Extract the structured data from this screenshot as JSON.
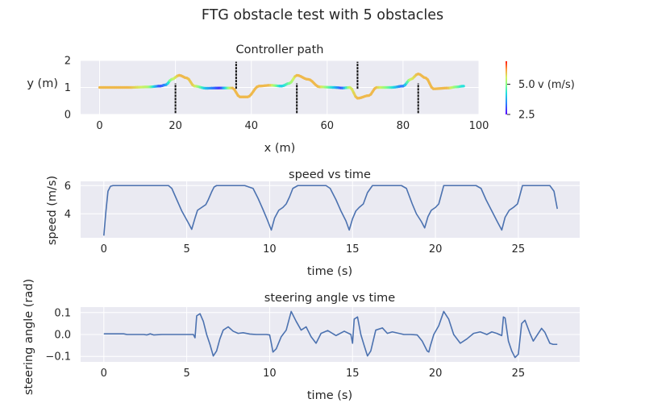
{
  "figure": {
    "title": "FTG obstacle test with 5 obstacles",
    "background": "#ffffff",
    "axes_face": "#eaeaf2",
    "grid_color": "#ffffff",
    "text_color": "#262626"
  },
  "chart_data": [
    {
      "type": "scatter",
      "title": "Controller path",
      "xlabel": "x (m)",
      "ylabel": "y (m)",
      "xlim": [
        -5,
        100
      ],
      "ylim": [
        0,
        2
      ],
      "xticks": [
        "0",
        "20",
        "40",
        "60",
        "80",
        "100"
      ],
      "yticks": [
        "0",
        "1",
        "2"
      ],
      "xtick_values": [
        0,
        20,
        40,
        60,
        80,
        100
      ],
      "ytick_values": [
        0,
        1,
        2
      ],
      "grid": true,
      "colormap": "rainbow",
      "colorbar": {
        "label": "v (m/s)",
        "range": [
          2.5,
          6.0
        ],
        "ticks": [
          "2.5",
          "5.0"
        ],
        "tick_values": [
          2.5,
          5.0
        ]
      },
      "path": {
        "x_start": 0,
        "x_end": 96,
        "points": [
          {
            "x": 0,
            "y": 1.0,
            "v": 6.0
          },
          {
            "x": 8,
            "y": 1.0,
            "v": 6.0
          },
          {
            "x": 13,
            "y": 1.02,
            "v": 5.3
          },
          {
            "x": 16,
            "y": 1.05,
            "v": 3.0
          },
          {
            "x": 17.5,
            "y": 1.1,
            "v": 3.5
          },
          {
            "x": 19,
            "y": 1.3,
            "v": 5.2
          },
          {
            "x": 21,
            "y": 1.45,
            "v": 6.0
          },
          {
            "x": 23,
            "y": 1.35,
            "v": 6.0
          },
          {
            "x": 25,
            "y": 1.05,
            "v": 5.8
          },
          {
            "x": 28,
            "y": 0.97,
            "v": 4.0
          },
          {
            "x": 32,
            "y": 0.98,
            "v": 2.8
          },
          {
            "x": 35,
            "y": 0.98,
            "v": 6.0
          },
          {
            "x": 37,
            "y": 0.65,
            "v": 6.0
          },
          {
            "x": 39,
            "y": 0.65,
            "v": 6.0
          },
          {
            "x": 42,
            "y": 1.05,
            "v": 6.0
          },
          {
            "x": 45,
            "y": 1.08,
            "v": 6.0
          },
          {
            "x": 48,
            "y": 1.05,
            "v": 4.0
          },
          {
            "x": 50,
            "y": 1.15,
            "v": 4.8
          },
          {
            "x": 52,
            "y": 1.45,
            "v": 6.0
          },
          {
            "x": 55,
            "y": 1.3,
            "v": 6.0
          },
          {
            "x": 58,
            "y": 1.02,
            "v": 6.0
          },
          {
            "x": 62,
            "y": 1.0,
            "v": 4.0
          },
          {
            "x": 64,
            "y": 0.98,
            "v": 3.0
          },
          {
            "x": 66,
            "y": 1.0,
            "v": 5.5
          },
          {
            "x": 68,
            "y": 0.6,
            "v": 6.0
          },
          {
            "x": 71,
            "y": 0.7,
            "v": 6.0
          },
          {
            "x": 73,
            "y": 1.0,
            "v": 6.0
          },
          {
            "x": 77,
            "y": 1.0,
            "v": 4.5
          },
          {
            "x": 80,
            "y": 1.05,
            "v": 3.2
          },
          {
            "x": 82,
            "y": 1.3,
            "v": 5.5
          },
          {
            "x": 84,
            "y": 1.5,
            "v": 6.0
          },
          {
            "x": 86,
            "y": 1.35,
            "v": 6.0
          },
          {
            "x": 88,
            "y": 0.95,
            "v": 6.0
          },
          {
            "x": 92,
            "y": 0.98,
            "v": 6.0
          },
          {
            "x": 94,
            "y": 1.02,
            "v": 5.0
          },
          {
            "x": 96,
            "y": 1.05,
            "v": 4.2
          }
        ]
      },
      "obstacles": [
        {
          "x": 20,
          "y0": 0.05,
          "y1": 1.15
        },
        {
          "x": 36,
          "y0": 0.95,
          "y1": 1.95
        },
        {
          "x": 52,
          "y0": 0.05,
          "y1": 1.15
        },
        {
          "x": 68,
          "y0": 0.95,
          "y1": 1.95
        },
        {
          "x": 84,
          "y0": 0.05,
          "y1": 1.15
        }
      ]
    },
    {
      "type": "line",
      "title": "speed vs time",
      "xlabel": "time (s)",
      "ylabel": "speed (m/s)",
      "xlim": [
        -1.4,
        28.7
      ],
      "ylim": [
        2.3,
        6.3
      ],
      "xticks": [
        "0",
        "5",
        "10",
        "15",
        "20",
        "25"
      ],
      "yticks": [
        "4",
        "6"
      ],
      "xtick_values": [
        0,
        5,
        10,
        15,
        20,
        25
      ],
      "ytick_values": [
        4,
        6
      ],
      "grid": true,
      "color": "#4c72b0",
      "x": [
        0,
        0.12,
        0.25,
        0.4,
        0.55,
        0.65,
        1,
        3.9,
        4.1,
        4.4,
        4.7,
        5.1,
        5.3,
        5.5,
        5.65,
        5.9,
        6.15,
        6.3,
        6.5,
        6.65,
        6.8,
        6.95,
        7.2,
        8.5,
        9.0,
        9.3,
        9.6,
        9.85,
        10.1,
        10.3,
        10.55,
        10.8,
        11.0,
        11.2,
        11.4,
        11.7,
        13.4,
        13.65,
        14.0,
        14.3,
        14.6,
        14.8,
        15.0,
        15.2,
        15.4,
        15.65,
        15.9,
        16.2,
        17.95,
        18.25,
        18.6,
        18.85,
        19.15,
        19.35,
        19.55,
        19.75,
        20.0,
        20.2,
        20.5,
        22.45,
        22.75,
        23.05,
        23.4,
        23.75,
        24.0,
        24.2,
        24.45,
        24.7,
        24.95,
        25.25,
        26.9,
        27.15,
        27.35
      ],
      "y": [
        2.45,
        4.1,
        5.6,
        5.95,
        6.0,
        6.0,
        6.0,
        6.0,
        5.8,
        5.0,
        4.2,
        3.35,
        2.9,
        3.7,
        4.25,
        4.45,
        4.65,
        5.0,
        5.55,
        5.9,
        6.0,
        6.0,
        6.0,
        6.0,
        5.8,
        5.1,
        4.3,
        3.6,
        2.85,
        3.7,
        4.25,
        4.45,
        4.7,
        5.2,
        5.8,
        6.0,
        6.0,
        5.8,
        5.0,
        4.2,
        3.5,
        2.85,
        3.65,
        4.2,
        4.45,
        4.7,
        5.5,
        6.0,
        6.0,
        5.8,
        4.7,
        4.0,
        3.45,
        3.0,
        3.8,
        4.25,
        4.45,
        4.7,
        6.0,
        6.0,
        5.8,
        5.0,
        4.2,
        3.4,
        2.85,
        3.75,
        4.25,
        4.45,
        4.7,
        6.0,
        6.0,
        5.6,
        4.35
      ]
    },
    {
      "type": "line",
      "title": "steering angle vs time",
      "xlabel": "time (s)",
      "ylabel": "steering angle (rad)",
      "xlim": [
        -1.4,
        28.7
      ],
      "ylim": [
        -0.125,
        0.125
      ],
      "xticks": [
        "0",
        "5",
        "10",
        "15",
        "20",
        "25"
      ],
      "yticks": [
        "−0.1",
        "0.0",
        "0.1"
      ],
      "xtick_values": [
        0,
        5,
        10,
        15,
        20,
        25
      ],
      "ytick_values": [
        -0.1,
        0.0,
        0.1
      ],
      "grid": true,
      "color": "#4c72b0",
      "x": [
        0,
        1.2,
        1.4,
        2.4,
        2.6,
        2.8,
        3.0,
        3.5,
        4.5,
        5.4,
        5.5,
        5.6,
        5.8,
        6.0,
        6.2,
        6.4,
        6.6,
        6.8,
        7.0,
        7.2,
        7.5,
        7.8,
        8.1,
        8.4,
        8.8,
        9.2,
        9.8,
        10.0,
        10.1,
        10.2,
        10.4,
        10.7,
        11.0,
        11.3,
        11.6,
        11.9,
        12.2,
        12.5,
        12.8,
        13.1,
        13.5,
        14.0,
        14.5,
        14.9,
        15.0,
        15.1,
        15.3,
        15.5,
        15.7,
        15.9,
        16.1,
        16.4,
        16.8,
        17.1,
        17.4,
        17.8,
        18.1,
        18.5,
        18.9,
        19.2,
        19.5,
        19.6,
        19.7,
        19.9,
        20.2,
        20.5,
        20.8,
        21.1,
        21.5,
        21.9,
        22.3,
        22.7,
        23.1,
        23.4,
        23.7,
        24.0,
        24.1,
        24.2,
        24.4,
        24.6,
        24.8,
        25.0,
        25.2,
        25.4,
        25.7,
        25.9,
        26.2,
        26.4,
        26.6,
        26.9,
        27.1,
        27.35
      ],
      "y": [
        0.003,
        0.003,
        0.0,
        0.0,
        -0.002,
        0.003,
        -0.002,
        0.0,
        0.0,
        0.0,
        -0.015,
        0.085,
        0.095,
        0.06,
        0.0,
        -0.045,
        -0.098,
        -0.075,
        -0.02,
        0.02,
        0.035,
        0.015,
        0.005,
        0.008,
        0.002,
        0.0,
        0.0,
        -0.002,
        -0.04,
        -0.08,
        -0.065,
        -0.01,
        0.02,
        0.105,
        0.06,
        0.02,
        0.035,
        -0.01,
        -0.04,
        0.005,
        0.018,
        -0.005,
        0.015,
        0.0,
        -0.04,
        0.07,
        0.08,
        0.0,
        -0.05,
        -0.098,
        -0.075,
        0.02,
        0.03,
        0.005,
        0.012,
        0.005,
        0.0,
        0.0,
        -0.002,
        -0.03,
        -0.075,
        -0.08,
        -0.05,
        0.0,
        0.04,
        0.105,
        0.07,
        0.0,
        -0.04,
        -0.02,
        0.005,
        0.012,
        0.0,
        0.012,
        0.005,
        -0.005,
        0.08,
        0.075,
        -0.03,
        -0.075,
        -0.105,
        -0.09,
        0.05,
        0.065,
        0.005,
        -0.03,
        0.005,
        0.028,
        0.01,
        -0.04,
        -0.045,
        -0.045
      ]
    }
  ]
}
